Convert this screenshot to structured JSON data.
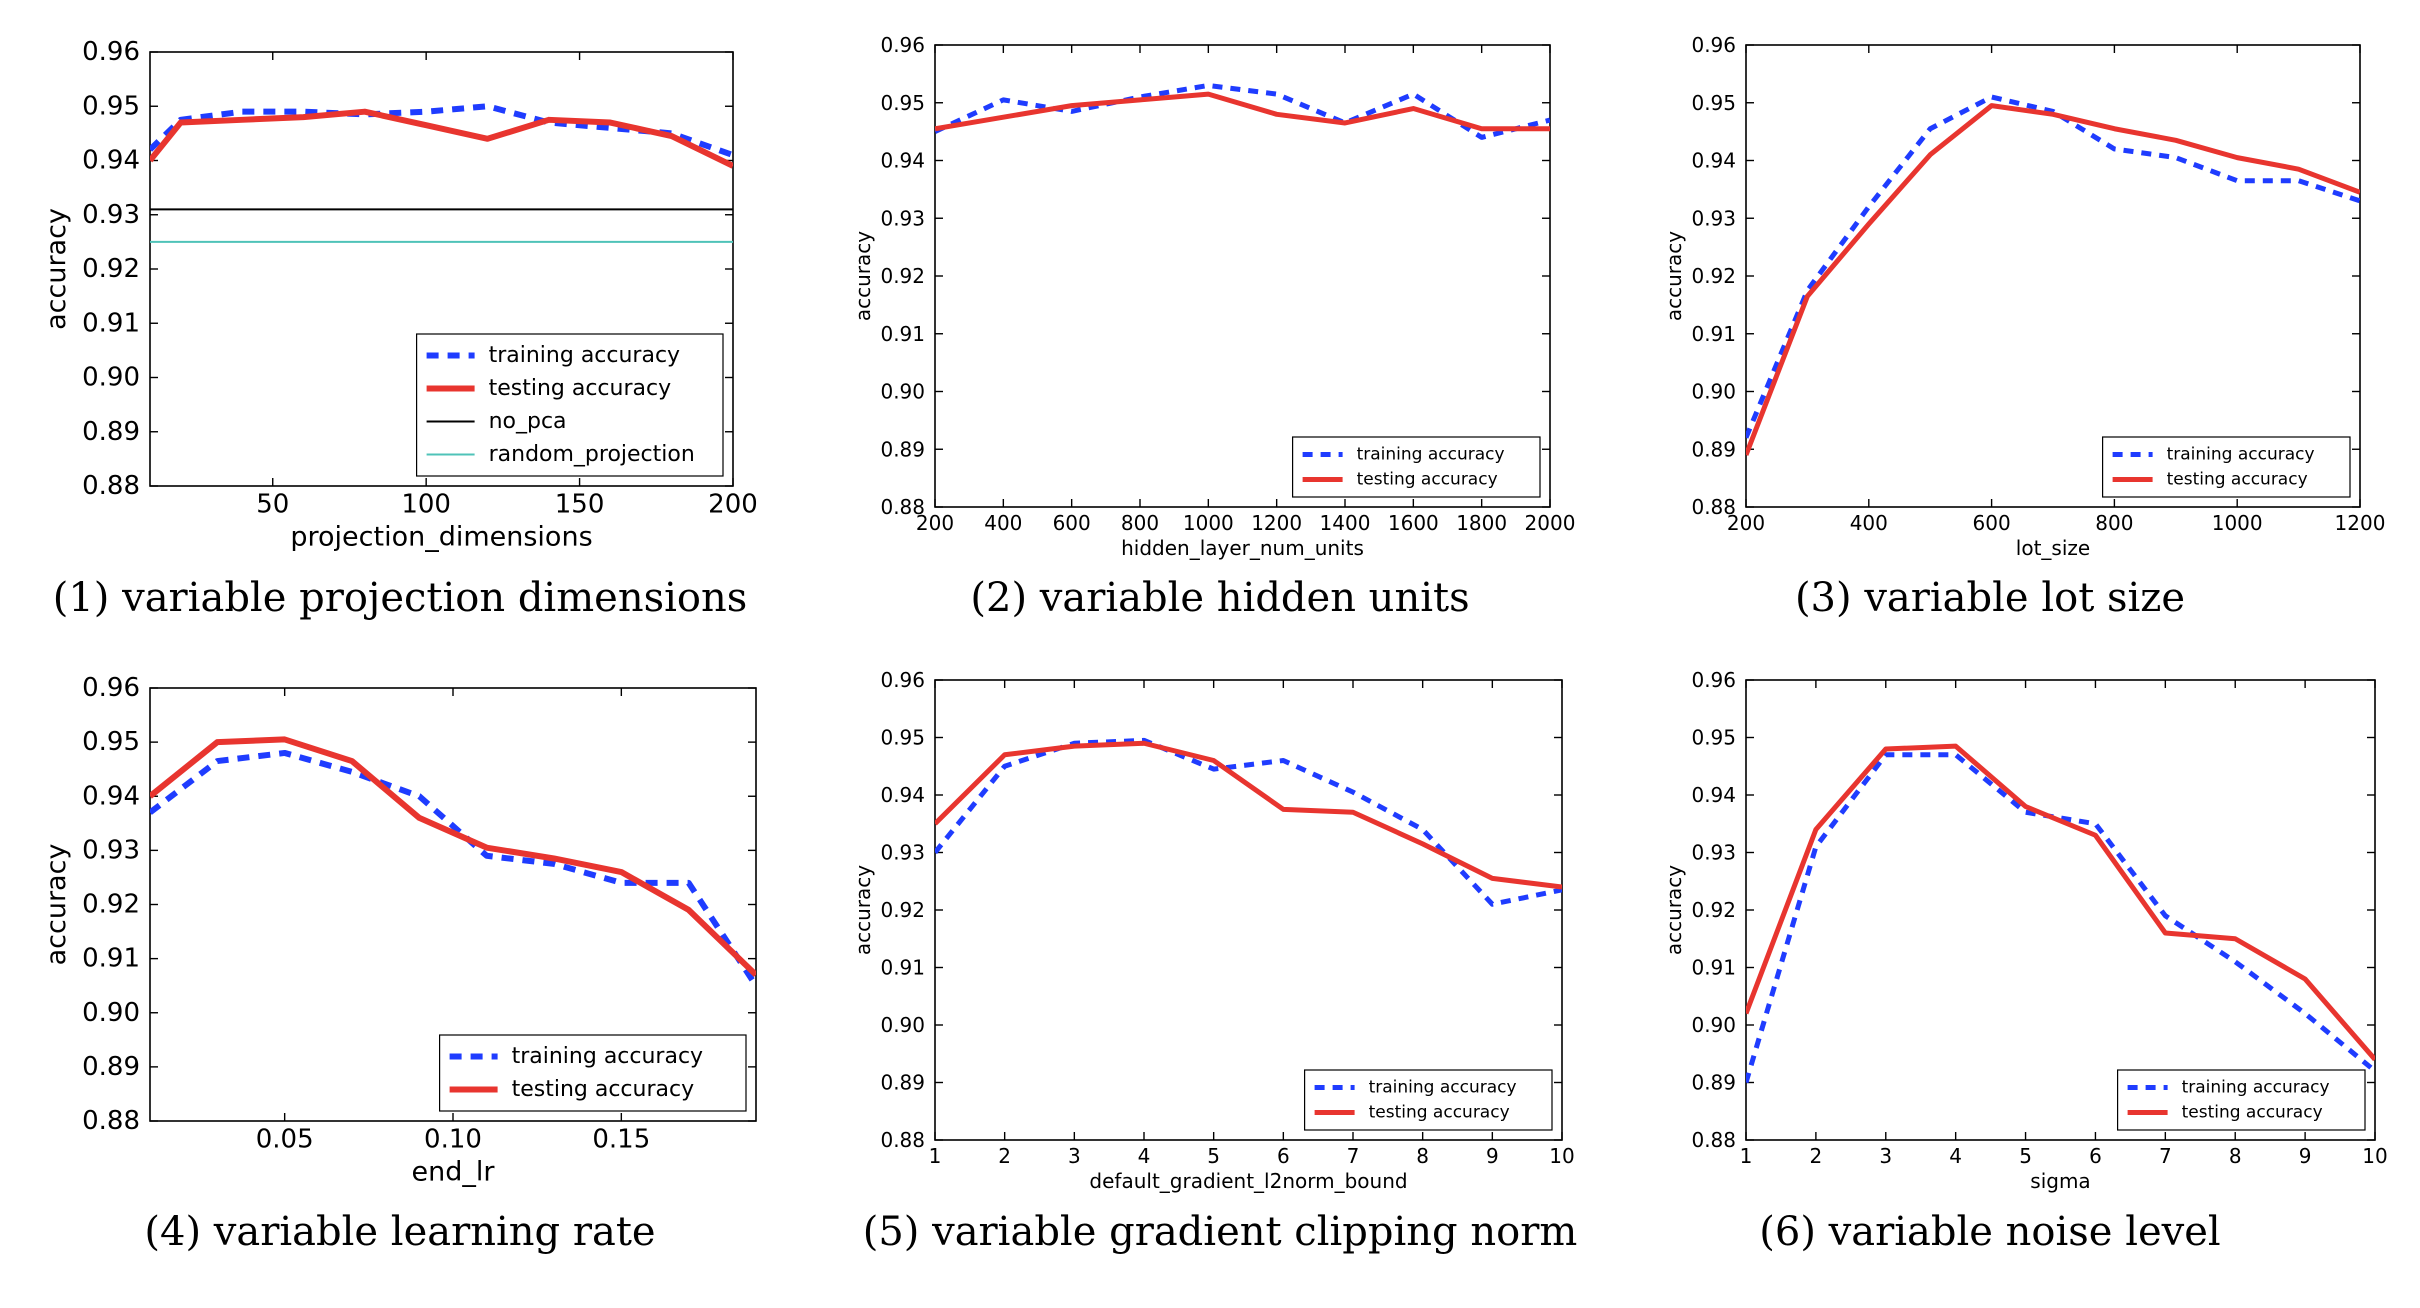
{
  "chart_data": [
    {
      "type": "line",
      "caption": "(1) variable projection dimensions",
      "xlabel": "projection_dimensions",
      "ylabel": "accuracy",
      "xlim": [
        10,
        200
      ],
      "ylim": [
        0.88,
        0.96
      ],
      "xticks": [
        50,
        100,
        150,
        200
      ],
      "xtick_labels": [
        "50",
        "100",
        "150",
        "200"
      ],
      "yticks": [
        0.88,
        0.89,
        0.9,
        0.91,
        0.92,
        0.93,
        0.94,
        0.95,
        0.96
      ],
      "ytick_labels": [
        "0.88",
        "0.89",
        "0.90",
        "0.91",
        "0.92",
        "0.93",
        "0.94",
        "0.95",
        "0.96"
      ],
      "legend": "bottom-right",
      "series": [
        {
          "name": "training accuracy",
          "color": "#1f3cff",
          "style": "dashed",
          "x": [
            10,
            20,
            40,
            60,
            80,
            100,
            120,
            140,
            160,
            180,
            200
          ],
          "y": [
            0.942,
            0.9475,
            0.949,
            0.949,
            0.9485,
            0.949,
            0.95,
            0.947,
            0.946,
            0.945,
            0.941
          ]
        },
        {
          "name": "testing accuracy",
          "color": "#e8352f",
          "style": "solid",
          "x": [
            10,
            20,
            40,
            60,
            80,
            100,
            120,
            140,
            160,
            180,
            200
          ],
          "y": [
            0.94,
            0.947,
            0.9475,
            0.948,
            0.949,
            0.9465,
            0.944,
            0.9475,
            0.947,
            0.9445,
            0.939
          ]
        },
        {
          "name": "no_pca",
          "color": "#000000",
          "style": "thin",
          "x": [
            10,
            200
          ],
          "y": [
            0.931,
            0.931
          ]
        },
        {
          "name": "random_projection",
          "color": "#4fc3b8",
          "style": "thin",
          "x": [
            10,
            200
          ],
          "y": [
            0.925,
            0.925
          ]
        }
      ]
    },
    {
      "type": "line",
      "caption": "(2) variable hidden units",
      "xlabel": "hidden_layer_num_units",
      "ylabel": "accuracy",
      "xlim": [
        200,
        2000
      ],
      "ylim": [
        0.88,
        0.96
      ],
      "xticks": [
        200,
        400,
        600,
        800,
        1000,
        1200,
        1400,
        1600,
        1800,
        2000
      ],
      "xtick_labels": [
        "200",
        "400",
        "600",
        "800",
        "1000",
        "1200",
        "1400",
        "1600",
        "1800",
        "2000"
      ],
      "yticks": [
        0.88,
        0.89,
        0.9,
        0.91,
        0.92,
        0.93,
        0.94,
        0.95,
        0.96
      ],
      "ytick_labels": [
        "0.88",
        "0.89",
        "0.90",
        "0.91",
        "0.92",
        "0.93",
        "0.94",
        "0.95",
        "0.96"
      ],
      "legend": "bottom-right",
      "series": [
        {
          "name": "training accuracy",
          "color": "#1f3cff",
          "style": "dashed",
          "x": [
            200,
            400,
            600,
            800,
            1000,
            1200,
            1400,
            1600,
            1800,
            2000
          ],
          "y": [
            0.945,
            0.9505,
            0.9485,
            0.951,
            0.953,
            0.9515,
            0.9465,
            0.9515,
            0.944,
            0.947
          ]
        },
        {
          "name": "testing accuracy",
          "color": "#e8352f",
          "style": "solid",
          "x": [
            200,
            400,
            600,
            800,
            1000,
            1200,
            1400,
            1600,
            1800,
            2000
          ],
          "y": [
            0.9455,
            0.9475,
            0.9495,
            0.9505,
            0.9515,
            0.948,
            0.9465,
            0.949,
            0.9455,
            0.9455
          ]
        }
      ]
    },
    {
      "type": "line",
      "caption": "(3) variable lot size",
      "xlabel": "lot_size",
      "ylabel": "accuracy",
      "xlim": [
        200,
        1200
      ],
      "ylim": [
        0.88,
        0.96
      ],
      "xticks": [
        200,
        400,
        600,
        800,
        1000,
        1200
      ],
      "xtick_labels": [
        "200",
        "400",
        "600",
        "800",
        "1000",
        "1200"
      ],
      "yticks": [
        0.88,
        0.89,
        0.9,
        0.91,
        0.92,
        0.93,
        0.94,
        0.95,
        0.96
      ],
      "ytick_labels": [
        "0.88",
        "0.89",
        "0.90",
        "0.91",
        "0.92",
        "0.93",
        "0.94",
        "0.95",
        "0.96"
      ],
      "legend": "bottom-right",
      "series": [
        {
          "name": "training accuracy",
          "color": "#1f3cff",
          "style": "dashed",
          "x": [
            200,
            300,
            400,
            500,
            600,
            700,
            800,
            900,
            1000,
            1100,
            1200
          ],
          "y": [
            0.892,
            0.9175,
            0.932,
            0.9455,
            0.951,
            0.9485,
            0.942,
            0.9405,
            0.9365,
            0.9365,
            0.933
          ]
        },
        {
          "name": "testing accuracy",
          "color": "#e8352f",
          "style": "solid",
          "x": [
            200,
            300,
            400,
            500,
            600,
            700,
            800,
            900,
            1000,
            1100,
            1200
          ],
          "y": [
            0.889,
            0.9165,
            0.929,
            0.941,
            0.9495,
            0.948,
            0.9455,
            0.9435,
            0.9405,
            0.9385,
            0.9345
          ]
        }
      ]
    },
    {
      "type": "line",
      "caption": "(4) variable learning rate",
      "xlabel": "end_lr",
      "ylabel": "accuracy",
      "xlim": [
        0.01,
        0.19
      ],
      "ylim": [
        0.88,
        0.96
      ],
      "xticks": [
        0.05,
        0.1,
        0.15
      ],
      "xtick_labels": [
        "0.05",
        "0.10",
        "0.15"
      ],
      "yticks": [
        0.88,
        0.89,
        0.9,
        0.91,
        0.92,
        0.93,
        0.94,
        0.95,
        0.96
      ],
      "ytick_labels": [
        "0.88",
        "0.89",
        "0.90",
        "0.91",
        "0.92",
        "0.93",
        "0.94",
        "0.95",
        "0.96"
      ],
      "legend": "bottom-right",
      "series": [
        {
          "name": "training accuracy",
          "color": "#1f3cff",
          "style": "dashed",
          "x": [
            0.01,
            0.03,
            0.05,
            0.07,
            0.09,
            0.11,
            0.13,
            0.15,
            0.17,
            0.19
          ],
          "y": [
            0.937,
            0.9465,
            0.948,
            0.9445,
            0.94,
            0.929,
            0.9275,
            0.924,
            0.924,
            0.905
          ]
        },
        {
          "name": "testing accuracy",
          "color": "#e8352f",
          "style": "solid",
          "x": [
            0.01,
            0.03,
            0.05,
            0.07,
            0.09,
            0.11,
            0.13,
            0.15,
            0.17,
            0.19
          ],
          "y": [
            0.94,
            0.95,
            0.9505,
            0.9465,
            0.936,
            0.9305,
            0.9285,
            0.926,
            0.919,
            0.907
          ]
        }
      ]
    },
    {
      "type": "line",
      "caption": "(5) variable gradient clipping norm",
      "xlabel": "default_gradient_l2norm_bound",
      "ylabel": "accuracy",
      "xlim": [
        1,
        10
      ],
      "ylim": [
        0.88,
        0.96
      ],
      "xticks": [
        1,
        2,
        3,
        4,
        5,
        6,
        7,
        8,
        9,
        10
      ],
      "xtick_labels": [
        "1",
        "2",
        "3",
        "4",
        "5",
        "6",
        "7",
        "8",
        "9",
        "10"
      ],
      "yticks": [
        0.88,
        0.89,
        0.9,
        0.91,
        0.92,
        0.93,
        0.94,
        0.95,
        0.96
      ],
      "ytick_labels": [
        "0.88",
        "0.89",
        "0.90",
        "0.91",
        "0.92",
        "0.93",
        "0.94",
        "0.95",
        "0.96"
      ],
      "legend": "bottom-right",
      "series": [
        {
          "name": "training accuracy",
          "color": "#1f3cff",
          "style": "dashed",
          "x": [
            1,
            2,
            3,
            4,
            5,
            6,
            7,
            8,
            9,
            10
          ],
          "y": [
            0.93,
            0.945,
            0.949,
            0.9495,
            0.9445,
            0.946,
            0.9405,
            0.934,
            0.921,
            0.9235
          ]
        },
        {
          "name": "testing accuracy",
          "color": "#e8352f",
          "style": "solid",
          "x": [
            1,
            2,
            3,
            4,
            5,
            6,
            7,
            8,
            9,
            10
          ],
          "y": [
            0.935,
            0.947,
            0.9485,
            0.949,
            0.946,
            0.9375,
            0.937,
            0.9315,
            0.9255,
            0.924
          ]
        }
      ]
    },
    {
      "type": "line",
      "caption": "(6) variable noise level",
      "xlabel": "sigma",
      "ylabel": "accuracy",
      "xlim": [
        1,
        10
      ],
      "ylim": [
        0.88,
        0.96
      ],
      "xticks": [
        1,
        2,
        3,
        4,
        5,
        6,
        7,
        8,
        9,
        10
      ],
      "xtick_labels": [
        "1",
        "2",
        "3",
        "4",
        "5",
        "6",
        "7",
        "8",
        "9",
        "10"
      ],
      "yticks": [
        0.88,
        0.89,
        0.9,
        0.91,
        0.92,
        0.93,
        0.94,
        0.95,
        0.96
      ],
      "ytick_labels": [
        "0.88",
        "0.89",
        "0.90",
        "0.91",
        "0.92",
        "0.93",
        "0.94",
        "0.95",
        "0.96"
      ],
      "legend": "bottom-right",
      "series": [
        {
          "name": "training accuracy",
          "color": "#1f3cff",
          "style": "dashed",
          "x": [
            1,
            2,
            3,
            4,
            5,
            6,
            7,
            8,
            9,
            10
          ],
          "y": [
            0.89,
            0.931,
            0.947,
            0.947,
            0.937,
            0.935,
            0.919,
            0.911,
            0.902,
            0.892
          ]
        },
        {
          "name": "testing accuracy",
          "color": "#e8352f",
          "style": "solid",
          "x": [
            1,
            2,
            3,
            4,
            5,
            6,
            7,
            8,
            9,
            10
          ],
          "y": [
            0.902,
            0.934,
            0.948,
            0.9485,
            0.938,
            0.933,
            0.916,
            0.915,
            0.908,
            0.894
          ]
        }
      ]
    }
  ]
}
